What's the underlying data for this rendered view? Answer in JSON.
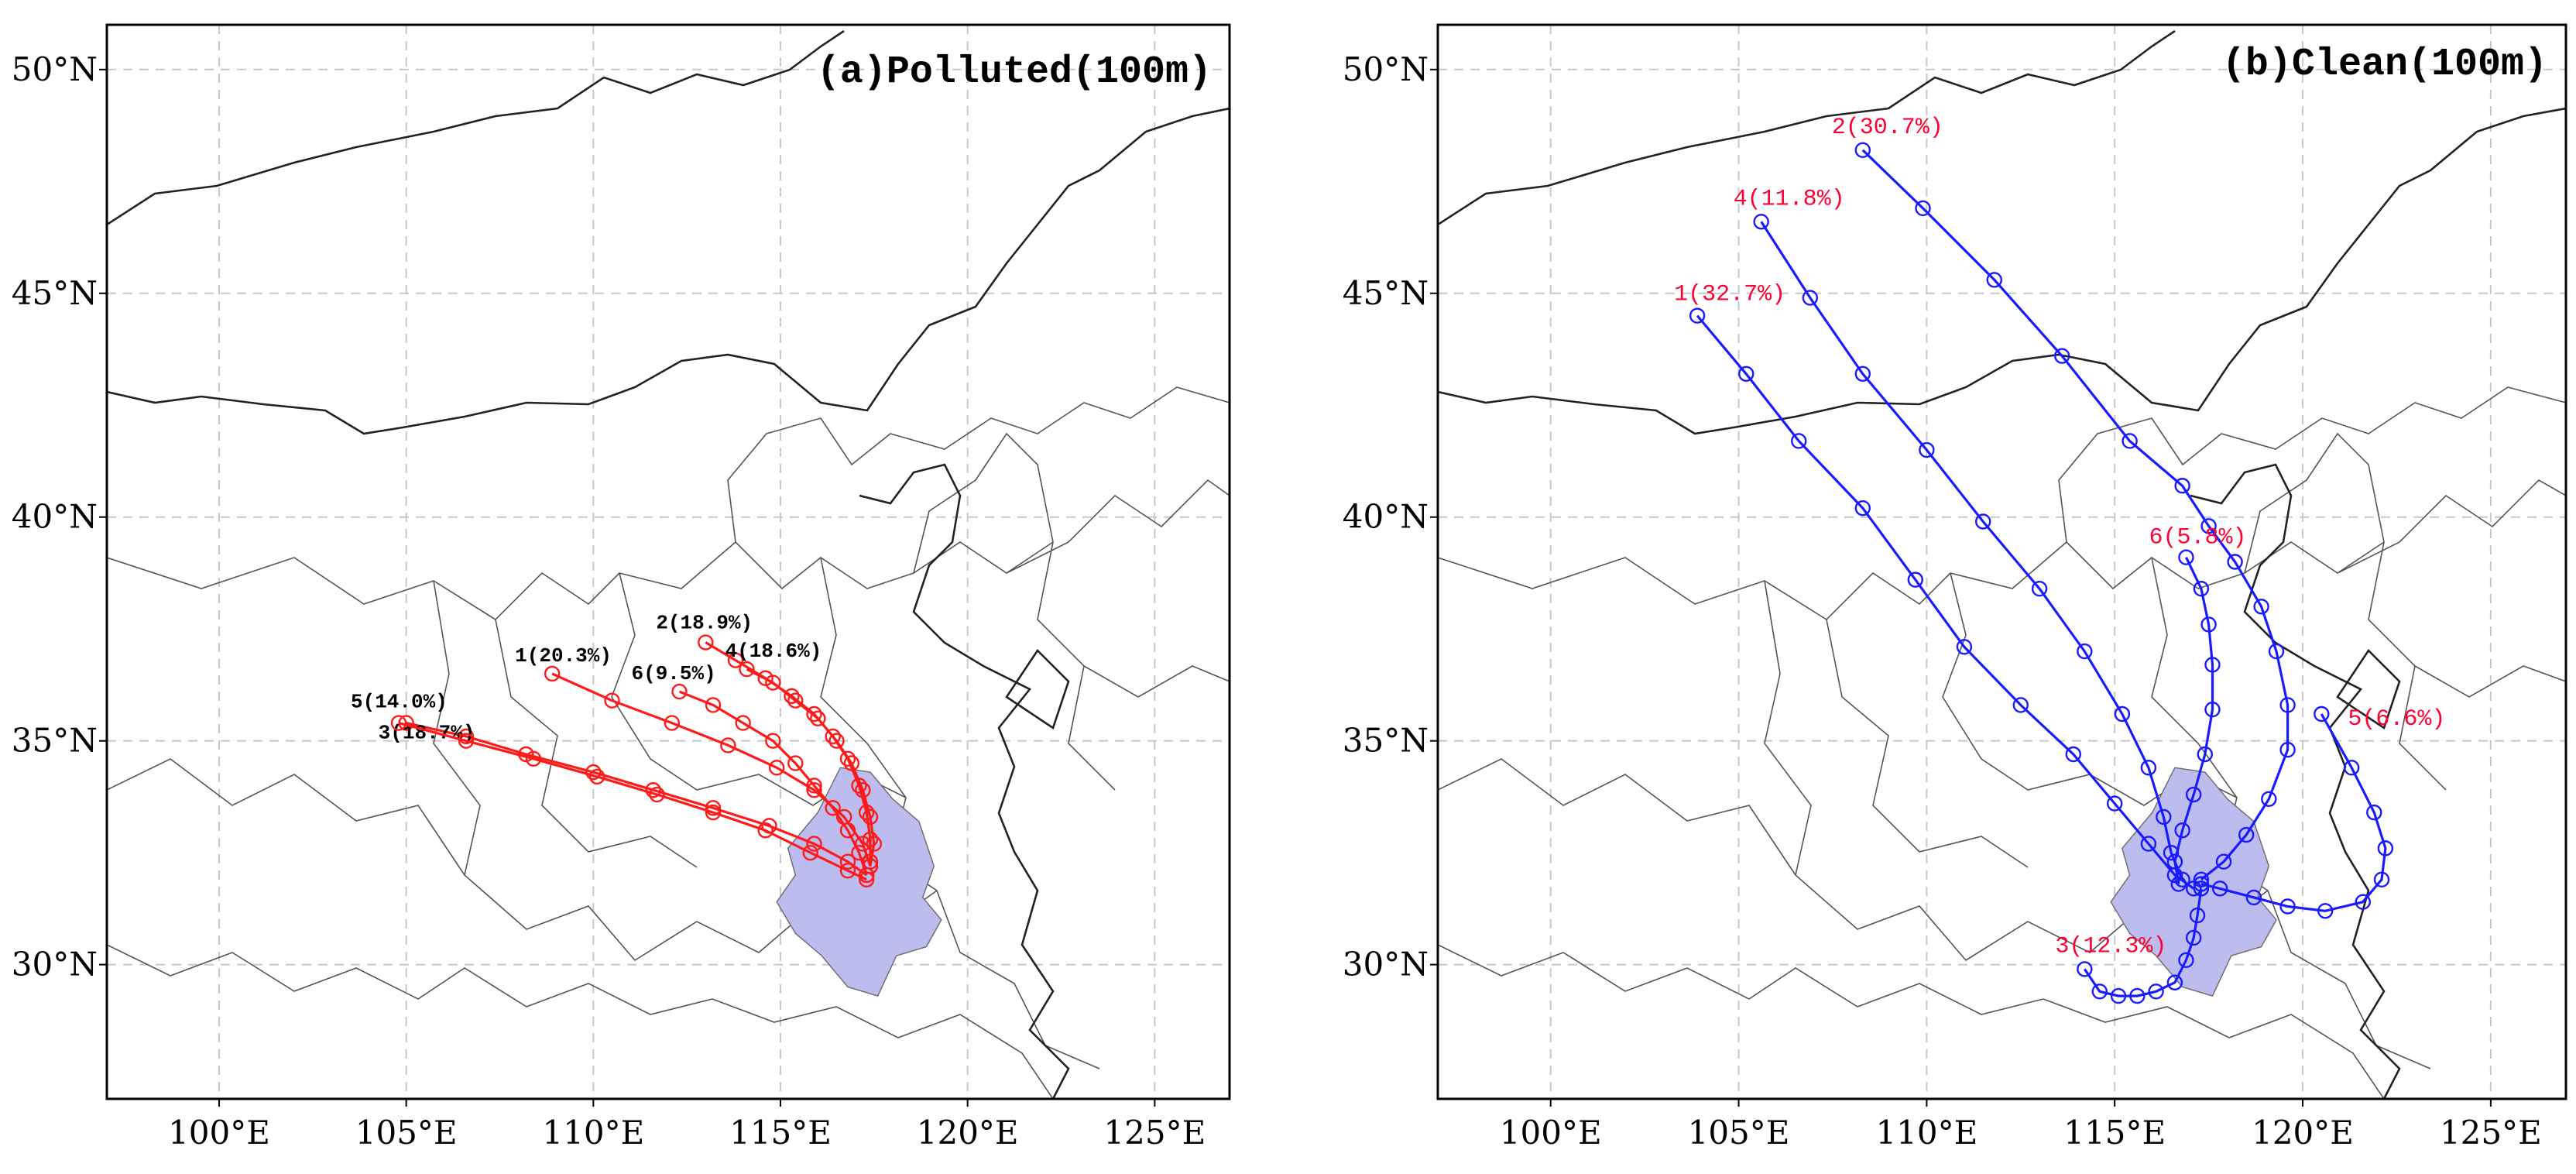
{
  "panels": [
    {
      "title": "(a)Polluted(100m)",
      "track_color": "#ff1a1a",
      "label_color": "#000000",
      "trajectories": [
        {
          "label": "1(20.3%)",
          "points": [
            [
              108.9,
              36.5
            ],
            [
              110.5,
              35.9
            ],
            [
              112.1,
              35.4
            ],
            [
              113.6,
              34.9
            ],
            [
              114.9,
              34.4
            ],
            [
              115.9,
              33.9
            ],
            [
              116.7,
              33.3
            ],
            [
              117.2,
              32.7
            ],
            [
              117.4,
              32.2
            ]
          ]
        },
        {
          "label": "2(18.9%)",
          "points": [
            [
              113.0,
              37.2
            ],
            [
              113.8,
              36.8
            ],
            [
              114.6,
              36.4
            ],
            [
              115.3,
              36.0
            ],
            [
              115.9,
              35.6
            ],
            [
              116.4,
              35.1
            ],
            [
              116.8,
              34.6
            ],
            [
              117.1,
              34.0
            ],
            [
              117.3,
              33.4
            ],
            [
              117.4,
              32.8
            ],
            [
              117.4,
              32.3
            ]
          ]
        },
        {
          "label": "3(18.7%)",
          "points": [
            [
              105.0,
              35.4
            ],
            [
              106.6,
              35.1
            ],
            [
              108.2,
              34.7
            ],
            [
              110.0,
              34.3
            ],
            [
              111.6,
              33.9
            ],
            [
              113.2,
              33.5
            ],
            [
              114.7,
              33.1
            ],
            [
              115.9,
              32.7
            ],
            [
              116.8,
              32.3
            ],
            [
              117.3,
              32.0
            ]
          ]
        },
        {
          "label": "4(18.6%)",
          "points": [
            [
              114.1,
              36.6
            ],
            [
              114.8,
              36.3
            ],
            [
              115.4,
              35.9
            ],
            [
              116.0,
              35.5
            ],
            [
              116.5,
              35.0
            ],
            [
              116.9,
              34.5
            ],
            [
              117.2,
              33.9
            ],
            [
              117.4,
              33.3
            ],
            [
              117.5,
              32.7
            ],
            [
              117.4,
              32.2
            ]
          ]
        },
        {
          "label": "5(14.0%)",
          "points": [
            [
              104.8,
              35.4
            ],
            [
              106.6,
              35.0
            ],
            [
              108.4,
              34.6
            ],
            [
              110.1,
              34.2
            ],
            [
              111.7,
              33.8
            ],
            [
              113.2,
              33.4
            ],
            [
              114.6,
              33.0
            ],
            [
              115.8,
              32.5
            ],
            [
              116.8,
              32.1
            ],
            [
              117.3,
              31.9
            ]
          ]
        },
        {
          "label": "6(9.5%)",
          "points": [
            [
              112.3,
              36.1
            ],
            [
              113.2,
              35.8
            ],
            [
              114.0,
              35.4
            ],
            [
              114.8,
              35.0
            ],
            [
              115.4,
              34.5
            ],
            [
              115.9,
              34.0
            ],
            [
              116.4,
              33.5
            ],
            [
              116.8,
              33.0
            ],
            [
              117.1,
              32.5
            ],
            [
              117.3,
              32.0
            ]
          ]
        }
      ]
    },
    {
      "title": "(b)Clean(100m)",
      "track_color": "#1a1aff",
      "label_color": "#ff0033",
      "trajectories": [
        {
          "label": "1(32.7%)",
          "points": [
            [
              103.9,
              44.5
            ],
            [
              105.2,
              43.2
            ],
            [
              106.6,
              41.7
            ],
            [
              108.3,
              40.2
            ],
            [
              109.7,
              38.6
            ],
            [
              111.0,
              37.1
            ],
            [
              112.5,
              35.8
            ],
            [
              113.9,
              34.7
            ],
            [
              115.0,
              33.6
            ],
            [
              115.9,
              32.7
            ],
            [
              116.6,
              32.0
            ],
            [
              117.1,
              31.7
            ]
          ]
        },
        {
          "label": "2(30.7%)",
          "points": [
            [
              108.3,
              48.2
            ],
            [
              109.9,
              46.9
            ],
            [
              111.8,
              45.3
            ],
            [
              113.6,
              43.6
            ],
            [
              115.4,
              41.7
            ],
            [
              116.8,
              40.7
            ],
            [
              117.5,
              39.8
            ],
            [
              118.2,
              39.0
            ],
            [
              118.9,
              38.0
            ],
            [
              119.3,
              37.0
            ],
            [
              119.6,
              35.8
            ],
            [
              119.6,
              34.8
            ],
            [
              119.1,
              33.7
            ],
            [
              118.5,
              32.9
            ],
            [
              117.9,
              32.3
            ],
            [
              117.3,
              31.9
            ]
          ]
        },
        {
          "label": "3(12.3%)",
          "points": [
            [
              114.2,
              29.9
            ],
            [
              114.6,
              29.4
            ],
            [
              115.1,
              29.3
            ],
            [
              115.6,
              29.3
            ],
            [
              116.1,
              29.4
            ],
            [
              116.6,
              29.6
            ],
            [
              116.9,
              30.1
            ],
            [
              117.1,
              30.6
            ],
            [
              117.2,
              31.1
            ],
            [
              117.3,
              31.7
            ]
          ]
        },
        {
          "label": "4(11.8%)",
          "points": [
            [
              105.6,
              46.6
            ],
            [
              106.9,
              44.9
            ],
            [
              108.3,
              43.2
            ],
            [
              110.0,
              41.5
            ],
            [
              111.5,
              39.9
            ],
            [
              113.0,
              38.4
            ],
            [
              114.2,
              37.0
            ],
            [
              115.2,
              35.6
            ],
            [
              115.9,
              34.4
            ],
            [
              116.3,
              33.3
            ],
            [
              116.5,
              32.5
            ],
            [
              116.8,
              31.9
            ]
          ]
        },
        {
          "label": "5(6.6%)",
          "points": [
            [
              120.5,
              35.6
            ],
            [
              121.3,
              34.4
            ],
            [
              121.9,
              33.4
            ],
            [
              122.2,
              32.6
            ],
            [
              122.1,
              31.9
            ],
            [
              121.6,
              31.4
            ],
            [
              120.6,
              31.2
            ],
            [
              119.6,
              31.3
            ],
            [
              118.7,
              31.5
            ],
            [
              117.8,
              31.7
            ],
            [
              117.3,
              31.8
            ]
          ]
        },
        {
          "label": "6(5.8%)",
          "points": [
            [
              116.9,
              39.1
            ],
            [
              117.3,
              38.4
            ],
            [
              117.5,
              37.6
            ],
            [
              117.6,
              36.7
            ],
            [
              117.6,
              35.7
            ],
            [
              117.4,
              34.7
            ],
            [
              117.1,
              33.8
            ],
            [
              116.8,
              33.0
            ],
            [
              116.6,
              32.3
            ],
            [
              116.7,
              31.8
            ]
          ]
        }
      ]
    }
  ],
  "axes": {
    "lon_range": [
      97,
      127
    ],
    "lat_range": [
      27,
      51
    ],
    "lon_ticks": [
      100,
      105,
      110,
      115,
      120,
      125
    ],
    "lat_ticks": [
      30,
      35,
      40,
      45,
      50
    ],
    "lon_labels": [
      "100°E",
      "105°E",
      "110°E",
      "115°E",
      "120°E",
      "125°E"
    ],
    "lat_labels": [
      "30°N",
      "35°N",
      "40°N",
      "45°N",
      "50°N"
    ]
  },
  "study_region": {
    "fill": "#bcbcee",
    "center": [
      117.2,
      31.8
    ]
  }
}
